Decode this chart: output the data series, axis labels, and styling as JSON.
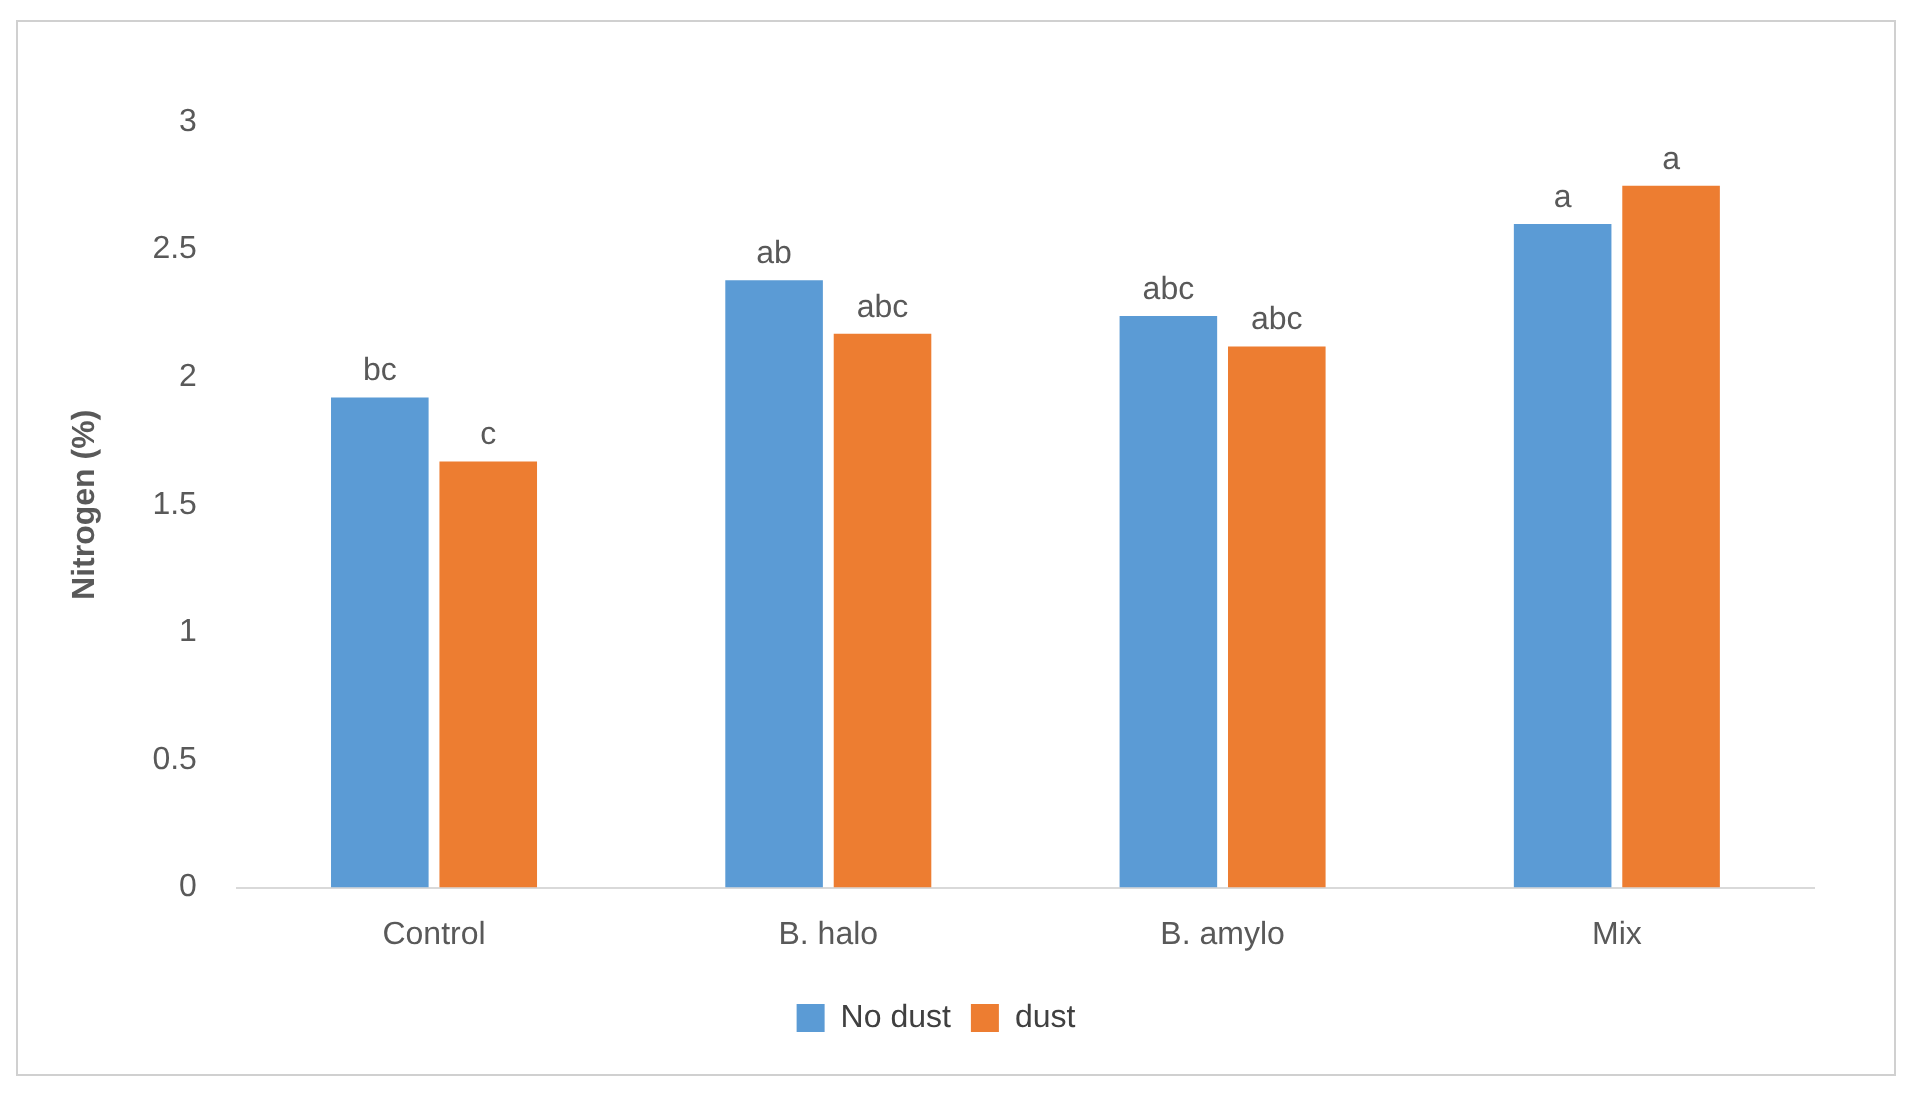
{
  "chart_data": {
    "type": "bar",
    "ylabel": "Nitrogen (%)",
    "categories": [
      "Control",
      "B. halo",
      "B. amylo",
      "Mix"
    ],
    "series": [
      {
        "name": "No dust",
        "color": "#5b9bd5",
        "values": [
          1.92,
          2.38,
          2.24,
          2.6
        ],
        "value_labels": [
          "bc",
          "ab",
          "abc",
          "a"
        ]
      },
      {
        "name": "dust",
        "color": "#ed7d31",
        "values": [
          1.67,
          2.17,
          2.12,
          2.75
        ],
        "value_labels": [
          "c",
          "abc",
          "abc",
          "a"
        ]
      }
    ],
    "ylim": [
      0,
      3
    ],
    "yticks": [
      0,
      0.5,
      1,
      1.5,
      2,
      2.5,
      3
    ],
    "grid": false,
    "legend": "bottom"
  }
}
